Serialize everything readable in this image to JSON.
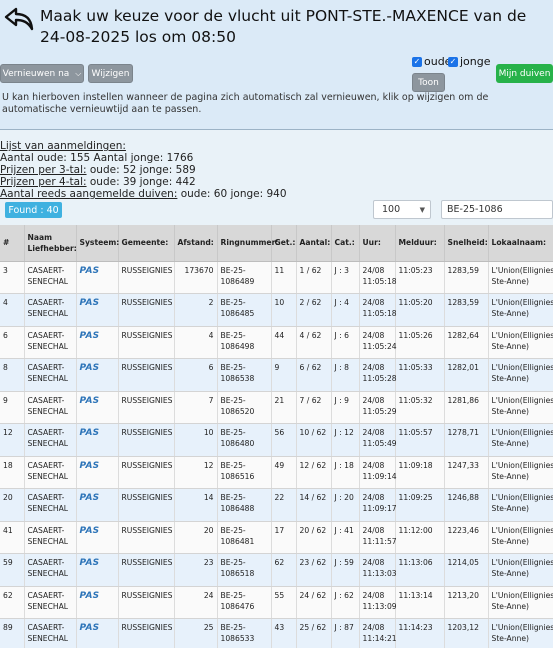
{
  "header": {
    "title": "Maak uw keuze voor de vlucht uit PONT-STE.-MAXENCE van de 24-08-2025 los om 08:50",
    "refresh_label": "Vernieuwen na",
    "change_label": "Wijzigen",
    "old_label": "oude",
    "young_label": "jonge",
    "toon_label": "Toon",
    "my_pigeons_label": "Mijn duiven",
    "info_text": "U kan hierboven instellen wanneer de pagina zich automatisch zal vernieuwen, klik op wijzigen om de automatische vernieuwtijd aan te passen."
  },
  "stats": {
    "list_title": "Lijst van aanmeldingen:",
    "count_line": "Aantal oude: 155 Aantal jonge: 1766",
    "prizes3_label": "Prijzen per 3-tal:",
    "prizes3_value": " oude: 52 jonge: 589",
    "prizes4_label": "Prijzen per 4-tal:",
    "prizes4_value": " oude: 39 jonge: 442",
    "registered_label": "Aantal reeds aangemelde duiven:",
    "registered_value": " oude: 60 jonge: 940"
  },
  "controls": {
    "found_label": "Found : 40",
    "page_size": "100",
    "search_value": "BE-25-1086"
  },
  "table": {
    "headers": [
      "#",
      "Naam Liefhebber:",
      "Systeem:",
      "Gemeente:",
      "Afstand:",
      "Ringnummer:",
      "Get.:",
      "Aantal:",
      "Cat.:",
      "Uur:",
      "Melduur:",
      "Snelheid:",
      "Lokaalnaam:"
    ],
    "rows": [
      {
        "nr": "3",
        "name": "CASAERT-SENECHAL",
        "system": "PAS",
        "city": "RUSSEIGNIES",
        "distance": "173670",
        "ring": "BE-25-1086489",
        "get": "11",
        "aantal": "1 / 62",
        "cat": "J : 3",
        "uur": "24/08 11:05:18",
        "melduur": "11:05:23",
        "speed": "1283,59",
        "local": "L'Union(Ellignies-Ste-Anne)"
      },
      {
        "nr": "4",
        "name": "CASAERT-SENECHAL",
        "system": "PAS",
        "city": "RUSSEIGNIES",
        "distance": "2",
        "ring": "BE-25-1086485",
        "get": "10",
        "aantal": "2 / 62",
        "cat": "J : 4",
        "uur": "24/08 11:05:18",
        "melduur": "11:05:20",
        "speed": "1283,59",
        "local": "L'Union(Ellignies-Ste-Anne)"
      },
      {
        "nr": "6",
        "name": "CASAERT-SENECHAL",
        "system": "PAS",
        "city": "RUSSEIGNIES",
        "distance": "4",
        "ring": "BE-25-1086498",
        "get": "44",
        "aantal": "4 / 62",
        "cat": "J : 6",
        "uur": "24/08 11:05:24",
        "melduur": "11:05:26",
        "speed": "1282,64",
        "local": "L'Union(Ellignies-Ste-Anne)"
      },
      {
        "nr": "8",
        "name": "CASAERT-SENECHAL",
        "system": "PAS",
        "city": "RUSSEIGNIES",
        "distance": "6",
        "ring": "BE-25-1086538",
        "get": "9",
        "aantal": "6 / 62",
        "cat": "J : 8",
        "uur": "24/08 11:05:28",
        "melduur": "11:05:33",
        "speed": "1282,01",
        "local": "L'Union(Ellignies-Ste-Anne)"
      },
      {
        "nr": "9",
        "name": "CASAERT-SENECHAL",
        "system": "PAS",
        "city": "RUSSEIGNIES",
        "distance": "7",
        "ring": "BE-25-1086520",
        "get": "21",
        "aantal": "7 / 62",
        "cat": "J : 9",
        "uur": "24/08 11:05:29",
        "melduur": "11:05:32",
        "speed": "1281,86",
        "local": "L'Union(Ellignies-Ste-Anne)"
      },
      {
        "nr": "12",
        "name": "CASAERT-SENECHAL",
        "system": "PAS",
        "city": "RUSSEIGNIES",
        "distance": "10",
        "ring": "BE-25-1086480",
        "get": "56",
        "aantal": "10 / 62",
        "cat": "J : 12",
        "uur": "24/08 11:05:49",
        "melduur": "11:05:57",
        "speed": "1278,71",
        "local": "L'Union(Ellignies-Ste-Anne)"
      },
      {
        "nr": "18",
        "name": "CASAERT-SENECHAL",
        "system": "PAS",
        "city": "RUSSEIGNIES",
        "distance": "12",
        "ring": "BE-25-1086516",
        "get": "49",
        "aantal": "12 / 62",
        "cat": "J : 18",
        "uur": "24/08 11:09:14",
        "melduur": "11:09:18",
        "speed": "1247,33",
        "local": "L'Union(Ellignies-Ste-Anne)"
      },
      {
        "nr": "20",
        "name": "CASAERT-SENECHAL",
        "system": "PAS",
        "city": "RUSSEIGNIES",
        "distance": "14",
        "ring": "BE-25-1086488",
        "get": "22",
        "aantal": "14 / 62",
        "cat": "J : 20",
        "uur": "24/08 11:09:17",
        "melduur": "11:09:25",
        "speed": "1246,88",
        "local": "L'Union(Ellignies-Ste-Anne)"
      },
      {
        "nr": "41",
        "name": "CASAERT-SENECHAL",
        "system": "PAS",
        "city": "RUSSEIGNIES",
        "distance": "20",
        "ring": "BE-25-1086481",
        "get": "17",
        "aantal": "20 / 62",
        "cat": "J : 41",
        "uur": "24/08 11:11:57",
        "melduur": "11:12:00",
        "speed": "1223,46",
        "local": "L'Union(Ellignies-Ste-Anne)"
      },
      {
        "nr": "59",
        "name": "CASAERT-SENECHAL",
        "system": "PAS",
        "city": "RUSSEIGNIES",
        "distance": "23",
        "ring": "BE-25-1086518",
        "get": "62",
        "aantal": "23 / 62",
        "cat": "J : 59",
        "uur": "24/08 11:13:03",
        "melduur": "11:13:06",
        "speed": "1214,05",
        "local": "L'Union(Ellignies-Ste-Anne)"
      },
      {
        "nr": "62",
        "name": "CASAERT-SENECHAL",
        "system": "PAS",
        "city": "RUSSEIGNIES",
        "distance": "24",
        "ring": "BE-25-1086476",
        "get": "55",
        "aantal": "24 / 62",
        "cat": "J : 62",
        "uur": "24/08 11:13:09",
        "melduur": "11:13:14",
        "speed": "1213,20",
        "local": "L'Union(Ellignies-Ste-Anne)"
      },
      {
        "nr": "89",
        "name": "CASAERT-SENECHAL",
        "system": "PAS",
        "city": "RUSSEIGNIES",
        "distance": "25",
        "ring": "BE-25-1086533",
        "get": "43",
        "aantal": "25 / 62",
        "cat": "J : 87",
        "uur": "24/08 11:14:21",
        "melduur": "11:14:23",
        "speed": "1203,12",
        "local": "L'Union(Ellignies-Ste-Anne)"
      }
    ]
  }
}
